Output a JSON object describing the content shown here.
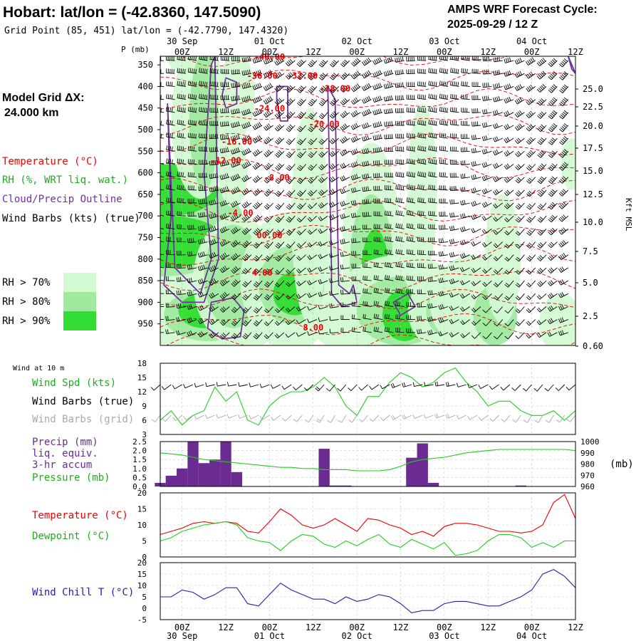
{
  "header": {
    "title": "Hobart:  lat/lon = (-42.8360, 147.5090)",
    "grid_point": "Grid Point (85, 451) lat/lon = (-42.7790, 147.4320)",
    "forecast_label": "AMPS WRF Forecast Cycle:",
    "forecast_cycle": "2025-09-29 / 12  Z"
  },
  "side_labels": {
    "model_grid": "Model Grid ΔX:",
    "model_grid_value": "24.000 km",
    "temperature": "Temperature (°C)",
    "rh": "RH (%, WRT liq. wat.)",
    "cloud": "Cloud/Precip Outline",
    "wind_barbs": "Wind Barbs (kts) (true)",
    "rh70": "RH > 70%",
    "rh80": "RH > 80%",
    "rh90": "RH > 90%",
    "wind10m": "Wind at 10 m",
    "wind_spd": "Wind Spd (kts)",
    "wind_barbs_true": "Wind Barbs (true)",
    "wind_barbs_grid": "Wind Barbs (grid)",
    "precip": "Precip (mm)",
    "precip2": "liq. equiv.",
    "precip3": "3-hr accum",
    "pressure": "Pressure (mb)",
    "pressure_unit": "(mb)",
    "temp2": "Temperature (°C)",
    "dewpoint": "Dewpoint (°C)",
    "windchill": "Wind Chill T (°C)",
    "kft": "Kft MSL",
    "p_mb": "P (mb)"
  },
  "colors": {
    "rh70": "#d4fad4",
    "rh80": "#a0eaa0",
    "rh90": "#33dd33",
    "temp": "#ee0000",
    "green": "#22cc22",
    "purple": "#7030a0",
    "precip_bar": "#6a2c91",
    "blue": "#2222aa",
    "grid_barb": "#aaaaaa"
  },
  "chart_data": [
    {
      "type": "heatmap",
      "name": "cross-section",
      "time_ticks": [
        "00Z",
        "12Z",
        "00Z",
        "12Z",
        "00Z",
        "12Z",
        "00Z",
        "12Z",
        "00Z",
        "12Z"
      ],
      "date_labels": [
        "30 Sep",
        "01 Oct",
        "02 Oct",
        "03 Oct",
        "04 Oct"
      ],
      "pressure_levels": [
        350,
        400,
        450,
        500,
        550,
        600,
        650,
        700,
        750,
        800,
        850,
        900,
        950
      ],
      "height_kft": [
        "25.0",
        "22.5",
        "20.0",
        "17.5",
        "15.0",
        "12.5",
        "10.0",
        "7.5",
        "5.0",
        "2.5",
        "0.60"
      ],
      "temp_labels": [
        "-40.00",
        "-36.00",
        "-32.00",
        "-28.00",
        "-24.00",
        "-20.00",
        "-16.00",
        "-12.00",
        "-8.00",
        "-4.00",
        "00.00",
        "4.00",
        "8.00"
      ],
      "xlim": [
        "2025-09-29 18Z",
        "2025-10-04 12Z"
      ],
      "ylim": [
        1000,
        330
      ]
    },
    {
      "type": "line",
      "name": "wind-speed",
      "ylabel": "Wind Spd (kts)",
      "ylim": [
        3,
        18
      ],
      "yticks": [
        "18",
        "15",
        "12",
        "9",
        "6",
        "3"
      ],
      "x_hours": [
        -6,
        -3,
        0,
        3,
        6,
        9,
        12,
        15,
        18,
        21,
        24,
        27,
        30,
        33,
        36,
        39,
        42,
        45,
        48,
        51,
        54,
        57,
        60,
        63,
        66,
        69,
        72,
        75,
        78,
        81,
        84,
        87,
        90,
        93,
        96,
        99,
        102,
        105,
        108
      ],
      "values": [
        6,
        8,
        5,
        7,
        8,
        13,
        10,
        12,
        6,
        5,
        9,
        11,
        12,
        12,
        13,
        15,
        13,
        9,
        7,
        11,
        11,
        14,
        16,
        15,
        13,
        14,
        16,
        17,
        14,
        12,
        9,
        10,
        10,
        8,
        7,
        7,
        8,
        6,
        8
      ]
    },
    {
      "type": "bar",
      "name": "precip-pressure",
      "ylabel": "Precip (mm) / Pressure (mb)",
      "ylim": [
        0,
        2.5
      ],
      "yticks": [
        "2.5",
        "2.0",
        "1.5",
        "1.0",
        "0.5",
        "0.0"
      ],
      "pressure_ylim": [
        960,
        1000
      ],
      "pressure_ticks": [
        "1000",
        "990",
        "980",
        "970",
        "960"
      ],
      "x_hours": [
        -6,
        -3,
        0,
        3,
        6,
        9,
        12,
        15,
        18,
        21,
        24,
        27,
        30,
        33,
        36,
        39,
        42,
        45,
        48,
        51,
        54,
        57,
        60,
        63,
        66,
        69,
        72,
        75,
        78,
        81,
        84,
        87,
        90,
        93,
        96,
        99,
        102,
        105,
        108
      ],
      "precip": [
        0.2,
        0.6,
        1.0,
        2.5,
        1.3,
        1.5,
        2.5,
        0.8,
        0,
        0,
        0,
        0,
        0,
        0,
        0,
        2.1,
        0.05,
        0.05,
        0,
        0,
        0,
        0,
        0,
        1.6,
        2.4,
        0.2,
        0,
        0,
        0,
        0,
        0,
        0,
        0,
        0.05,
        0,
        0,
        0,
        0,
        0
      ],
      "pressure": [
        990,
        989,
        988,
        986,
        984,
        983,
        982,
        981,
        980,
        979,
        978,
        977,
        977,
        976,
        976,
        975,
        975,
        975,
        974,
        974,
        974,
        975,
        978,
        982,
        984,
        985,
        986,
        988,
        990,
        991,
        992,
        993,
        993,
        993,
        993,
        993,
        993,
        993,
        992
      ]
    },
    {
      "type": "line",
      "name": "temperature-dewpoint",
      "ylabel": "Temperature (°C)",
      "ylim": [
        0,
        20
      ],
      "yticks": [
        "20",
        "15",
        "10",
        "5",
        "0"
      ],
      "x_hours": [
        -6,
        -3,
        0,
        3,
        6,
        9,
        12,
        15,
        18,
        21,
        24,
        27,
        30,
        33,
        36,
        39,
        42,
        45,
        48,
        51,
        54,
        57,
        60,
        63,
        66,
        69,
        72,
        75,
        78,
        81,
        84,
        87,
        90,
        93,
        96,
        99,
        102,
        105,
        108
      ],
      "series": [
        {
          "name": "Temperature (°C)",
          "values": [
            7,
            8,
            9,
            10.5,
            11,
            10.5,
            11,
            10.5,
            8,
            7.5,
            11,
            15,
            13,
            10,
            9,
            10,
            12,
            10,
            8,
            12,
            11.5,
            10,
            9,
            7,
            8,
            6.5,
            9.5,
            10.5,
            10.5,
            10,
            9,
            8,
            8,
            7.5,
            8,
            10,
            17,
            19.5,
            12
          ]
        },
        {
          "name": "Dewpoint (°C)",
          "values": [
            5,
            6,
            8,
            9,
            10,
            10.5,
            11,
            10,
            6,
            5,
            4.5,
            2,
            5,
            7,
            6.5,
            4,
            3,
            5,
            3.5,
            5.5,
            7,
            4,
            3,
            5.5,
            4,
            2.5,
            4.5,
            0.5,
            1,
            2,
            5,
            7,
            7,
            6,
            3,
            4.5,
            3,
            5,
            5
          ]
        }
      ]
    },
    {
      "type": "line",
      "name": "wind-chill",
      "ylabel": "Wind Chill T (°C)",
      "ylim": [
        -5,
        20
      ],
      "yticks": [
        "20",
        "15",
        "10",
        "5",
        "0",
        "-5"
      ],
      "x_hours": [
        -6,
        -3,
        0,
        3,
        6,
        9,
        12,
        15,
        18,
        21,
        24,
        27,
        30,
        33,
        36,
        39,
        42,
        45,
        48,
        51,
        54,
        57,
        60,
        63,
        66,
        69,
        72,
        75,
        78,
        81,
        84,
        87,
        90,
        93,
        96,
        99,
        102,
        105,
        108
      ],
      "series": [
        {
          "name": "Wind Chill T (°C)",
          "values": [
            5,
            5,
            8,
            7,
            4,
            6,
            9,
            9,
            2,
            1,
            6,
            11,
            8,
            6,
            4,
            4,
            2,
            5,
            3,
            4,
            6,
            5,
            2,
            -2,
            -1,
            -1,
            2,
            3,
            3,
            2,
            1,
            1,
            3,
            5,
            8,
            15,
            17,
            14,
            9
          ]
        }
      ]
    }
  ]
}
